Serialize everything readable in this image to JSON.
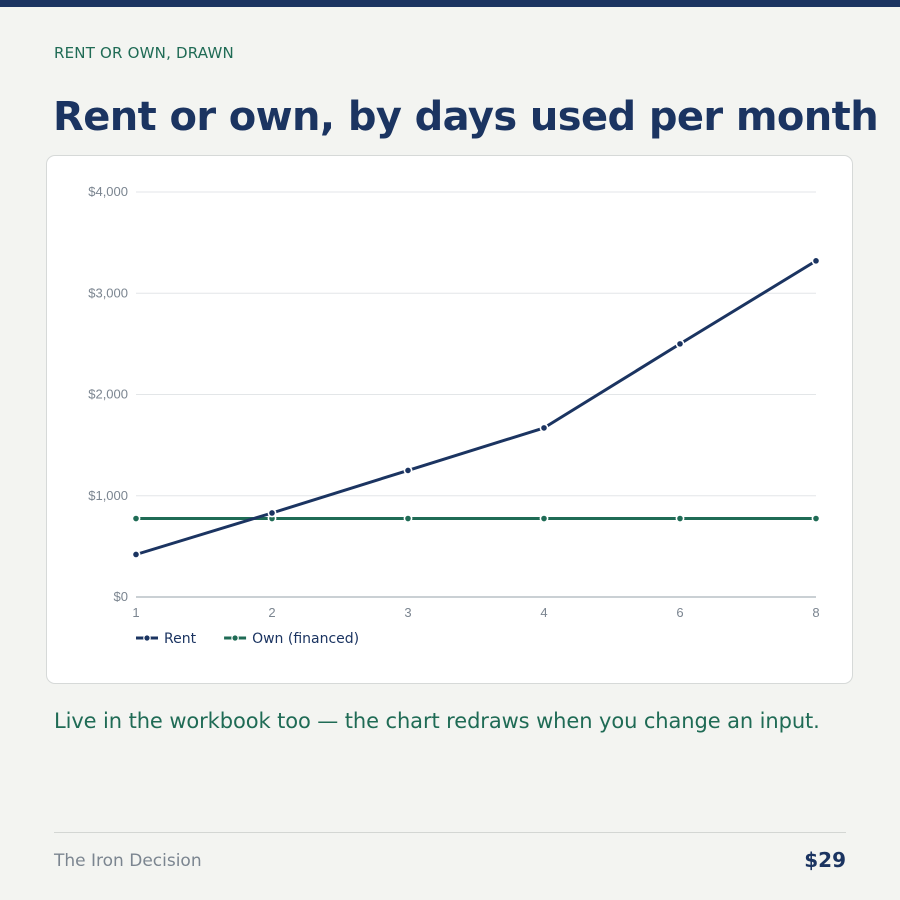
{
  "header": {
    "eyebrow": "RENT OR OWN, DRAWN",
    "title": "Rent or own, by days used per month"
  },
  "caption": "Live in the workbook too — the chart redraws when you change an input.",
  "footer": {
    "brand": "The Iron Decision",
    "price": "$29"
  },
  "colors": {
    "navy": "#1b3461",
    "green": "#1f6b55",
    "background": "#f3f4f1"
  },
  "chart_data": {
    "type": "line",
    "x": [
      "1",
      "2",
      "3",
      "4",
      "6",
      "8"
    ],
    "x_scale": "categorical",
    "y_ticks": [
      0,
      1000,
      2000,
      3000,
      4000
    ],
    "y_tick_labels": [
      "$0",
      "$1,000",
      "$2,000",
      "$3,000",
      "$4,000"
    ],
    "ylim": [
      0,
      4000
    ],
    "grid": true,
    "legend_position": "bottom-left",
    "series": [
      {
        "name": "Rent",
        "color": "#1b3461",
        "values": [
          420,
          830,
          1250,
          1670,
          2500,
          3320
        ]
      },
      {
        "name": "Own (financed)",
        "color": "#1f6b55",
        "values": [
          775,
          775,
          775,
          775,
          775,
          775
        ]
      }
    ]
  }
}
